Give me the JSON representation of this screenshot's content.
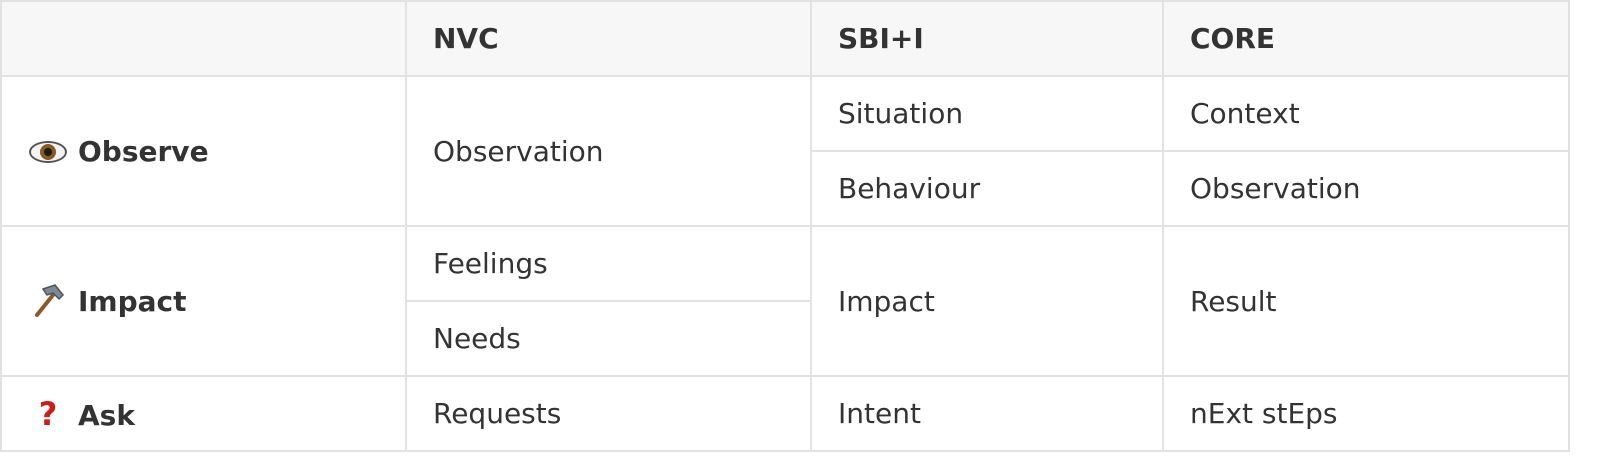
{
  "table": {
    "headers": [
      "",
      "NVC",
      "SBI+I",
      "CORE"
    ],
    "rows": {
      "observe": {
        "icon": "eye-icon",
        "label": "Observe",
        "nvc": "Observation",
        "sbi": [
          "Situation",
          "Behaviour"
        ],
        "core": [
          "Context",
          "Observation"
        ]
      },
      "impact": {
        "icon": "hammer-icon",
        "label": "Impact",
        "nvc": [
          "Feelings",
          "Needs"
        ],
        "sbi": "Impact",
        "core": "Result"
      },
      "ask": {
        "icon": "question-mark-icon",
        "label": "Ask",
        "nvc": "Requests",
        "sbi": "Intent",
        "core": "nExt stEps"
      }
    }
  },
  "colors": {
    "border": "#e2e2e2",
    "header_bg": "#f7f7f7",
    "text": "#333333",
    "question_mark": "#d11a1a"
  }
}
